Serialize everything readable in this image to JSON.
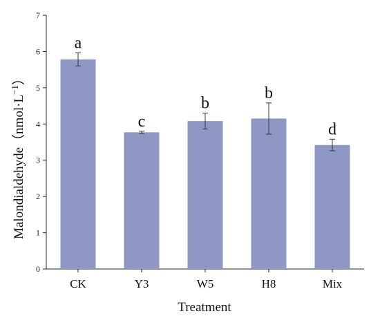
{
  "chart_data": {
    "type": "bar",
    "title": "",
    "xlabel": "Treatment",
    "ylabel": "Malondialdehyde（nmol·L",
    "ylabel_superscript": "−1",
    "ylabel_close": "）",
    "categories": [
      "CK",
      "Y3",
      "W5",
      "H8",
      "Mix"
    ],
    "values": [
      5.78,
      3.77,
      4.08,
      4.15,
      3.42
    ],
    "errors": [
      0.18,
      0.03,
      0.22,
      0.43,
      0.16
    ],
    "significance": [
      "a",
      "c",
      "b",
      "b",
      "d"
    ],
    "ylim": [
      0,
      7
    ],
    "yticks": [
      "0",
      "1",
      "2",
      "3",
      "4",
      "5",
      "6",
      "7"
    ],
    "grid": false,
    "bar_color": "#8f97c4"
  }
}
